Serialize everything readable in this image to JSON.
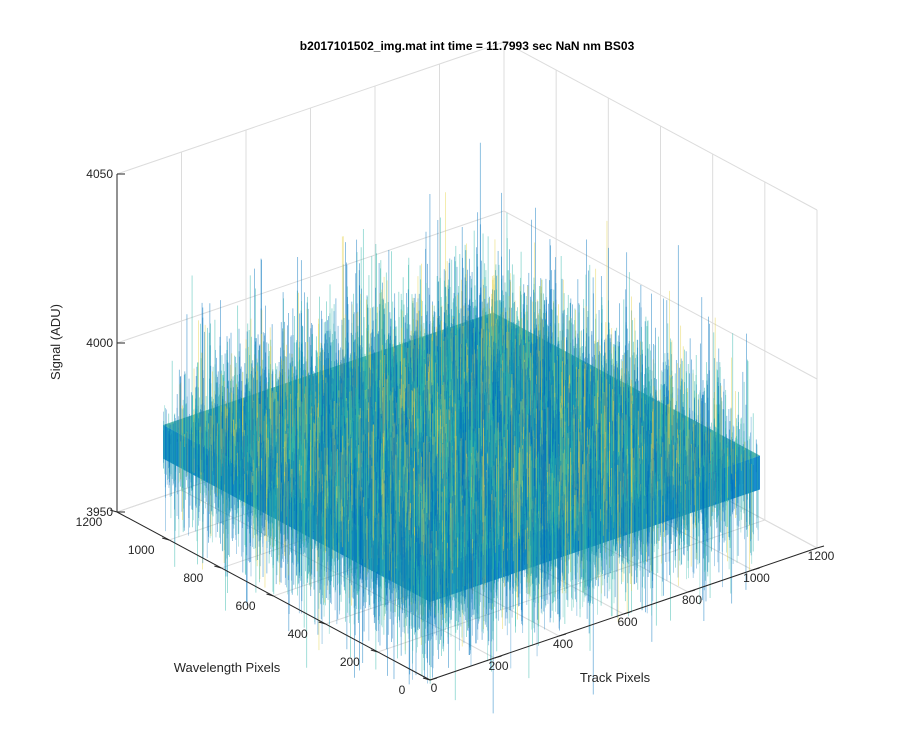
{
  "chart_data": {
    "type": "surface",
    "title": "b2017101502_img.mat int time = 11.7993 sec  NaN nm BS03",
    "xlabel": "Track Pixels",
    "ylabel": "Wavelength Pixels",
    "zlabel": "Signal (ADU)",
    "xlim": [
      0,
      1200
    ],
    "ylim": [
      0,
      1200
    ],
    "zlim": [
      3950,
      4050
    ],
    "x_ticks": [
      "0",
      "200",
      "400",
      "600",
      "800",
      "1000",
      "1200"
    ],
    "y_ticks": [
      "0",
      "200",
      "400",
      "600",
      "800",
      "1000",
      "1200"
    ],
    "z_ticks": [
      "3950",
      "4000",
      "4050"
    ],
    "grid": true,
    "surface": {
      "x_range": [
        1,
        1024
      ],
      "y_range": [
        1,
        1024
      ],
      "baseline_signal": 3980,
      "noise_spread": [
        3955,
        4035
      ],
      "colormap": "parula"
    },
    "colors": {
      "surface_low": "#0072bd",
      "surface_mid": "#2bb5a8",
      "surface_high": "#e6d34a",
      "grid": "#dcdcdc",
      "axis": "#262626"
    }
  }
}
